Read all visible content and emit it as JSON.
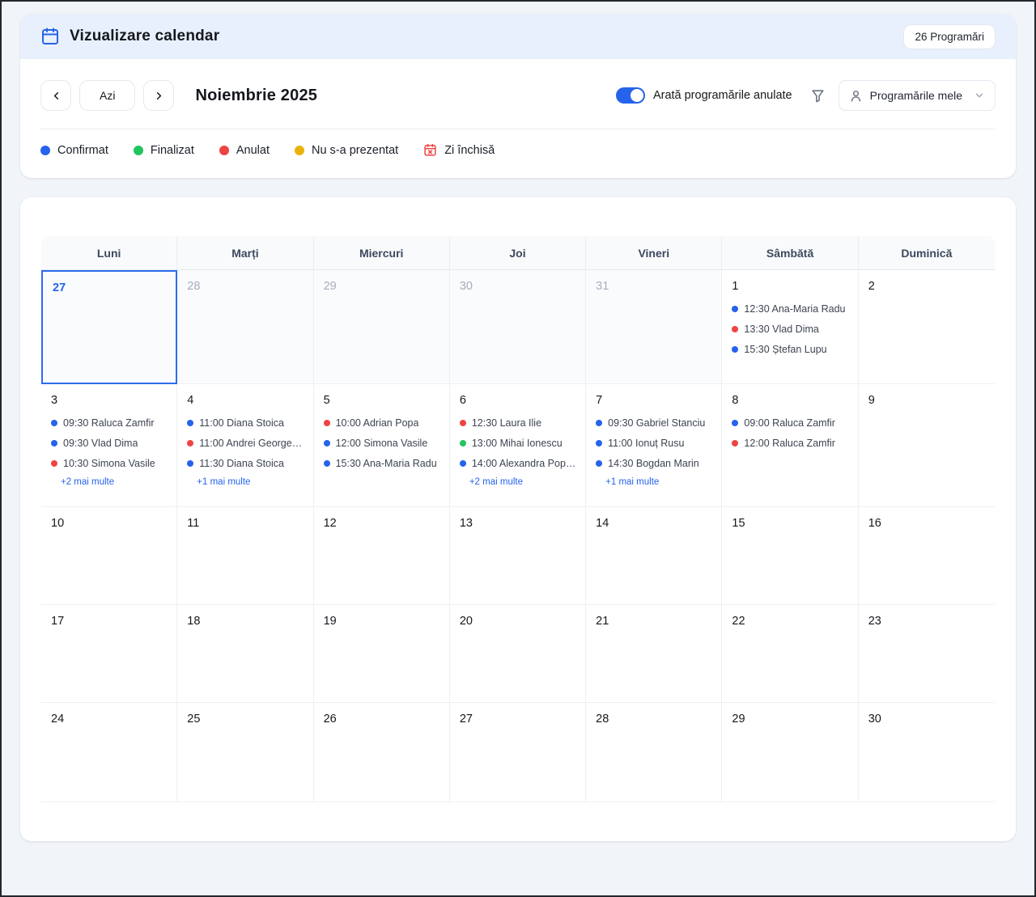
{
  "header": {
    "title": "Vizualizare calendar",
    "badge": "26 Programări"
  },
  "toolbar": {
    "today_label": "Azi",
    "month_title": "Noiembrie 2025",
    "toggle_label": "Arată programările anulate",
    "toggle_on": true,
    "filter_select_value": "Programările mele"
  },
  "legend": {
    "items": [
      {
        "label": "Confirmat",
        "status": "confirmat",
        "color": "#2563eb"
      },
      {
        "label": "Finalizat",
        "status": "finalizat",
        "color": "#22c55e"
      },
      {
        "label": "Anulat",
        "status": "anulat",
        "color": "#ef4444"
      },
      {
        "label": "Nu s-a prezentat",
        "status": "nu_s_a_prezentat",
        "color": "#eab308"
      },
      {
        "label": "Zi închisă",
        "status": "zi_inchisa",
        "icon": "calendar-x-icon",
        "color": "#ef4444"
      }
    ]
  },
  "calendar": {
    "weekdays": [
      "Luni",
      "Marți",
      "Miercuri",
      "Joi",
      "Vineri",
      "Sâmbătă",
      "Duminică"
    ],
    "status_colors": {
      "confirmat": "#2563eb",
      "finalizat": "#22c55e",
      "anulat": "#ef4444",
      "nu_s_a_prezentat": "#eab308"
    },
    "weeks": [
      {
        "days": [
          {
            "number": "27",
            "in_month": false,
            "today": true,
            "events": []
          },
          {
            "number": "28",
            "in_month": false,
            "events": []
          },
          {
            "number": "29",
            "in_month": false,
            "events": []
          },
          {
            "number": "30",
            "in_month": false,
            "events": []
          },
          {
            "number": "31",
            "in_month": false,
            "events": []
          },
          {
            "number": "1",
            "in_month": true,
            "events": [
              {
                "time": "12:30",
                "name": "Ana-Maria Radu",
                "status": "confirmat"
              },
              {
                "time": "13:30",
                "name": "Vlad Dima",
                "status": "anulat"
              },
              {
                "time": "15:30",
                "name": "Ștefan Lupu",
                "status": "confirmat"
              }
            ]
          },
          {
            "number": "2",
            "in_month": true,
            "events": []
          }
        ]
      },
      {
        "days": [
          {
            "number": "3",
            "in_month": true,
            "events": [
              {
                "time": "09:30",
                "name": "Raluca Zamfir",
                "status": "confirmat"
              },
              {
                "time": "09:30",
                "name": "Vlad Dima",
                "status": "confirmat"
              },
              {
                "time": "10:30",
                "name": "Simona Vasile",
                "status": "anulat"
              }
            ],
            "more": "+2 mai multe"
          },
          {
            "number": "4",
            "in_month": true,
            "events": [
              {
                "time": "11:00",
                "name": "Diana Stoica",
                "status": "confirmat"
              },
              {
                "time": "11:00",
                "name": "Andrei Georges…",
                "status": "anulat"
              },
              {
                "time": "11:30",
                "name": "Diana Stoica",
                "status": "confirmat"
              }
            ],
            "more": "+1 mai multe"
          },
          {
            "number": "5",
            "in_month": true,
            "events": [
              {
                "time": "10:00",
                "name": "Adrian Popa",
                "status": "anulat"
              },
              {
                "time": "12:00",
                "name": "Simona Vasile",
                "status": "confirmat"
              },
              {
                "time": "15:30",
                "name": "Ana-Maria Radu",
                "status": "confirmat"
              }
            ]
          },
          {
            "number": "6",
            "in_month": true,
            "events": [
              {
                "time": "12:30",
                "name": "Laura Ilie",
                "status": "anulat"
              },
              {
                "time": "13:00",
                "name": "Mihai Ionescu",
                "status": "finalizat"
              },
              {
                "time": "14:00",
                "name": "Alexandra Pop…",
                "status": "confirmat"
              }
            ],
            "more": "+2 mai multe"
          },
          {
            "number": "7",
            "in_month": true,
            "events": [
              {
                "time": "09:30",
                "name": "Gabriel Stanciu",
                "status": "confirmat"
              },
              {
                "time": "11:00",
                "name": "Ionuț Rusu",
                "status": "confirmat"
              },
              {
                "time": "14:30",
                "name": "Bogdan Marin",
                "status": "confirmat"
              }
            ],
            "more": "+1 mai multe"
          },
          {
            "number": "8",
            "in_month": true,
            "events": [
              {
                "time": "09:00",
                "name": "Raluca Zamfir",
                "status": "confirmat"
              },
              {
                "time": "12:00",
                "name": "Raluca Zamfir",
                "status": "anulat"
              }
            ]
          },
          {
            "number": "9",
            "in_month": true,
            "events": []
          }
        ]
      },
      {
        "days": [
          {
            "number": "10",
            "in_month": true,
            "events": []
          },
          {
            "number": "11",
            "in_month": true,
            "events": []
          },
          {
            "number": "12",
            "in_month": true,
            "events": []
          },
          {
            "number": "13",
            "in_month": true,
            "events": []
          },
          {
            "number": "14",
            "in_month": true,
            "events": []
          },
          {
            "number": "15",
            "in_month": true,
            "events": []
          },
          {
            "number": "16",
            "in_month": true,
            "events": []
          }
        ]
      },
      {
        "days": [
          {
            "number": "17",
            "in_month": true,
            "events": []
          },
          {
            "number": "18",
            "in_month": true,
            "events": []
          },
          {
            "number": "19",
            "in_month": true,
            "events": []
          },
          {
            "number": "20",
            "in_month": true,
            "events": []
          },
          {
            "number": "21",
            "in_month": true,
            "events": []
          },
          {
            "number": "22",
            "in_month": true,
            "events": []
          },
          {
            "number": "23",
            "in_month": true,
            "events": []
          }
        ]
      },
      {
        "days": [
          {
            "number": "24",
            "in_month": true,
            "events": []
          },
          {
            "number": "25",
            "in_month": true,
            "events": []
          },
          {
            "number": "26",
            "in_month": true,
            "events": []
          },
          {
            "number": "27",
            "in_month": true,
            "events": []
          },
          {
            "number": "28",
            "in_month": true,
            "events": []
          },
          {
            "number": "29",
            "in_month": true,
            "events": []
          },
          {
            "number": "30",
            "in_month": true,
            "events": []
          }
        ]
      }
    ]
  }
}
